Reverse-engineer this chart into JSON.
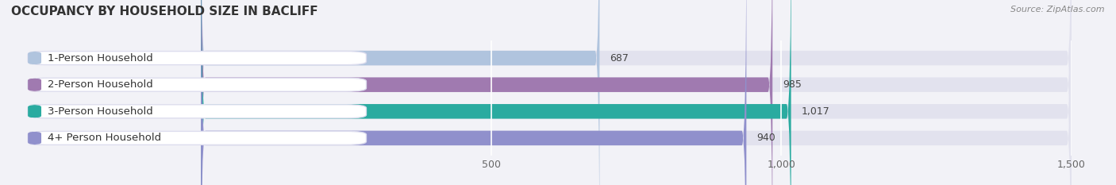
{
  "title": "OCCUPANCY BY HOUSEHOLD SIZE IN BACLIFF",
  "source": "Source: ZipAtlas.com",
  "categories": [
    "1-Person Household",
    "2-Person Household",
    "3-Person Household",
    "4+ Person Household"
  ],
  "values": [
    687,
    985,
    1017,
    940
  ],
  "bar_colors": [
    "#b0c4de",
    "#a07ab0",
    "#2aaba0",
    "#9090cc"
  ],
  "background_color": "#f2f2f7",
  "bar_background_color": "#e2e2ee",
  "label_box_color": "#ffffff",
  "xlim": [
    0,
    1500
  ],
  "xticks": [
    500,
    1000,
    1500
  ],
  "title_fontsize": 11,
  "label_fontsize": 9.5,
  "value_fontsize": 9,
  "bar_height": 0.55,
  "bar_rounding": 8
}
